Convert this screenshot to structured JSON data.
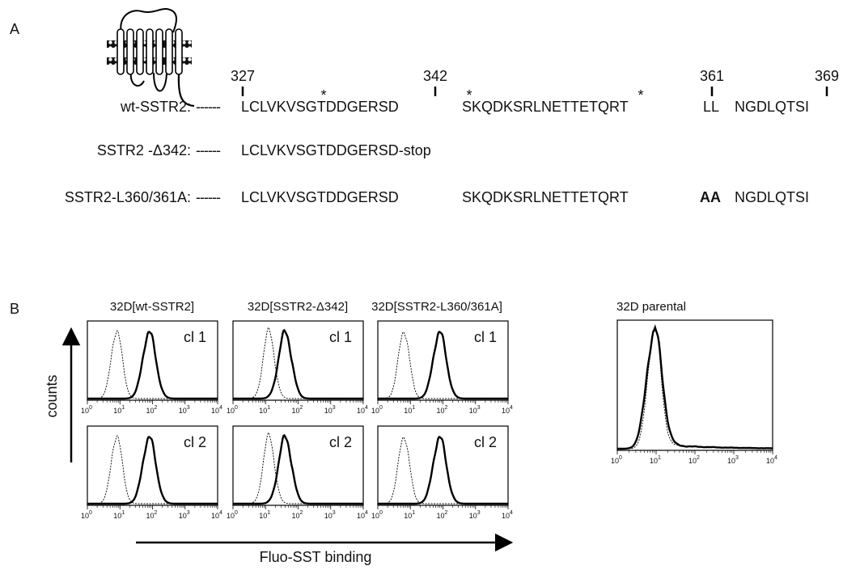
{
  "panel_a": {
    "label": "A",
    "positions": [
      "327",
      "342",
      "361",
      "369"
    ],
    "asterisks": [
      "*",
      "*",
      "*"
    ],
    "rows": [
      {
        "name": "wt-SSTR2:",
        "dashes": "------",
        "segments": [
          "LCLVKVSGTDDGERSD",
          "SKQDKSRLNETTETQRT",
          "LL",
          "NGDLQTSI"
        ]
      },
      {
        "name": "SSTR2 -Δ342:",
        "dashes": "------",
        "segments": [
          "LCLVKVSGTDDGERSD-stop"
        ]
      },
      {
        "name": "SSTR2-L360/361A:",
        "dashes": "------",
        "segments": [
          "LCLVKVSGTDDGERSD",
          "SKQDKSRLNETTETQRT",
          "AA",
          "NGDLQTSI"
        ]
      }
    ]
  },
  "panel_b": {
    "label": "B",
    "columns": [
      {
        "title": "32D[wt-SSTR2]",
        "clones": [
          "cl 1",
          "cl 2"
        ]
      },
      {
        "title": "32D[SSTR2-Δ342]",
        "clones": [
          "cl 1",
          "cl 2"
        ]
      },
      {
        "title": "32D[SSTR2-L360/361A]",
        "clones": [
          "cl 1",
          "cl 2"
        ]
      }
    ],
    "parental": {
      "title": "32D parental"
    },
    "y_label": "counts",
    "x_label": "Fluo-SST binding",
    "tick_base": "10",
    "tick_exponents": [
      "0",
      "1",
      "2",
      "3",
      "4"
    ]
  }
}
